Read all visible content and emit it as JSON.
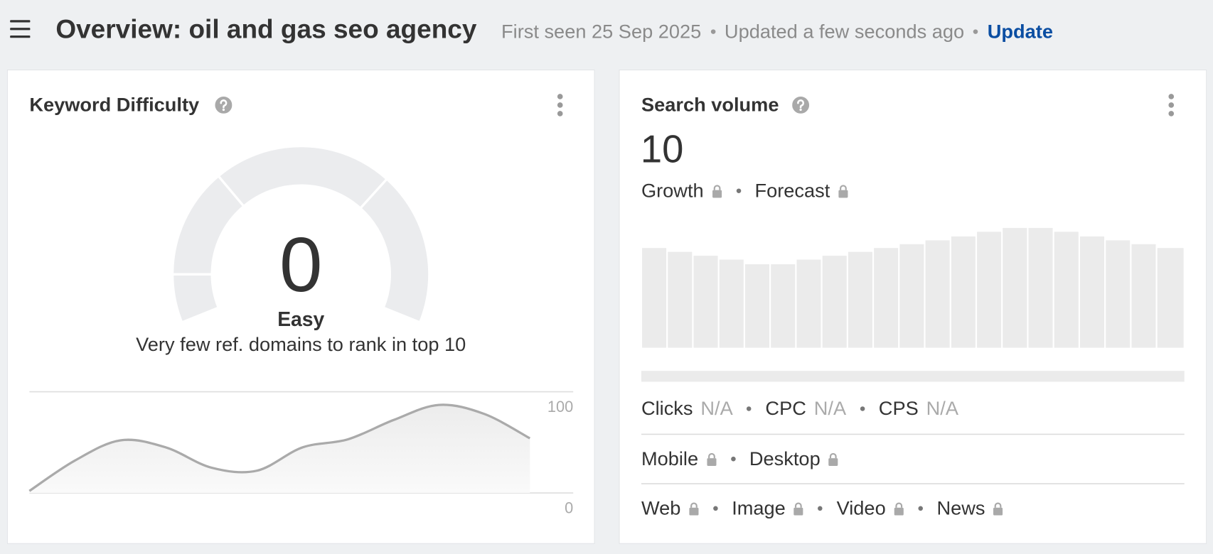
{
  "header": {
    "title": "Overview: oil and gas seo agency",
    "first_seen": "First seen 25 Sep 2025",
    "updated": "Updated a few seconds ago",
    "update_link": "Update"
  },
  "keyword_difficulty": {
    "title": "Keyword Difficulty",
    "score": 0,
    "rating": "Easy",
    "description": "Very few ref. domains to rank in top 10",
    "trend": {
      "type": "area",
      "ylim": [
        0,
        100
      ],
      "yticks": [
        0,
        100
      ],
      "values": [
        2,
        32,
        52,
        45,
        25,
        22,
        45,
        53,
        72,
        87,
        78,
        54
      ]
    }
  },
  "search_volume": {
    "title": "Search volume",
    "value": 10,
    "metrics": [
      "Growth",
      "Forecast"
    ],
    "stats": [
      {
        "label": "Clicks",
        "value": "N/A"
      },
      {
        "label": "CPC",
        "value": "N/A"
      },
      {
        "label": "CPS",
        "value": "N/A"
      }
    ],
    "devices": [
      "Mobile",
      "Desktop"
    ],
    "search_types": [
      "Web",
      "Image",
      "Video",
      "News"
    ]
  }
}
